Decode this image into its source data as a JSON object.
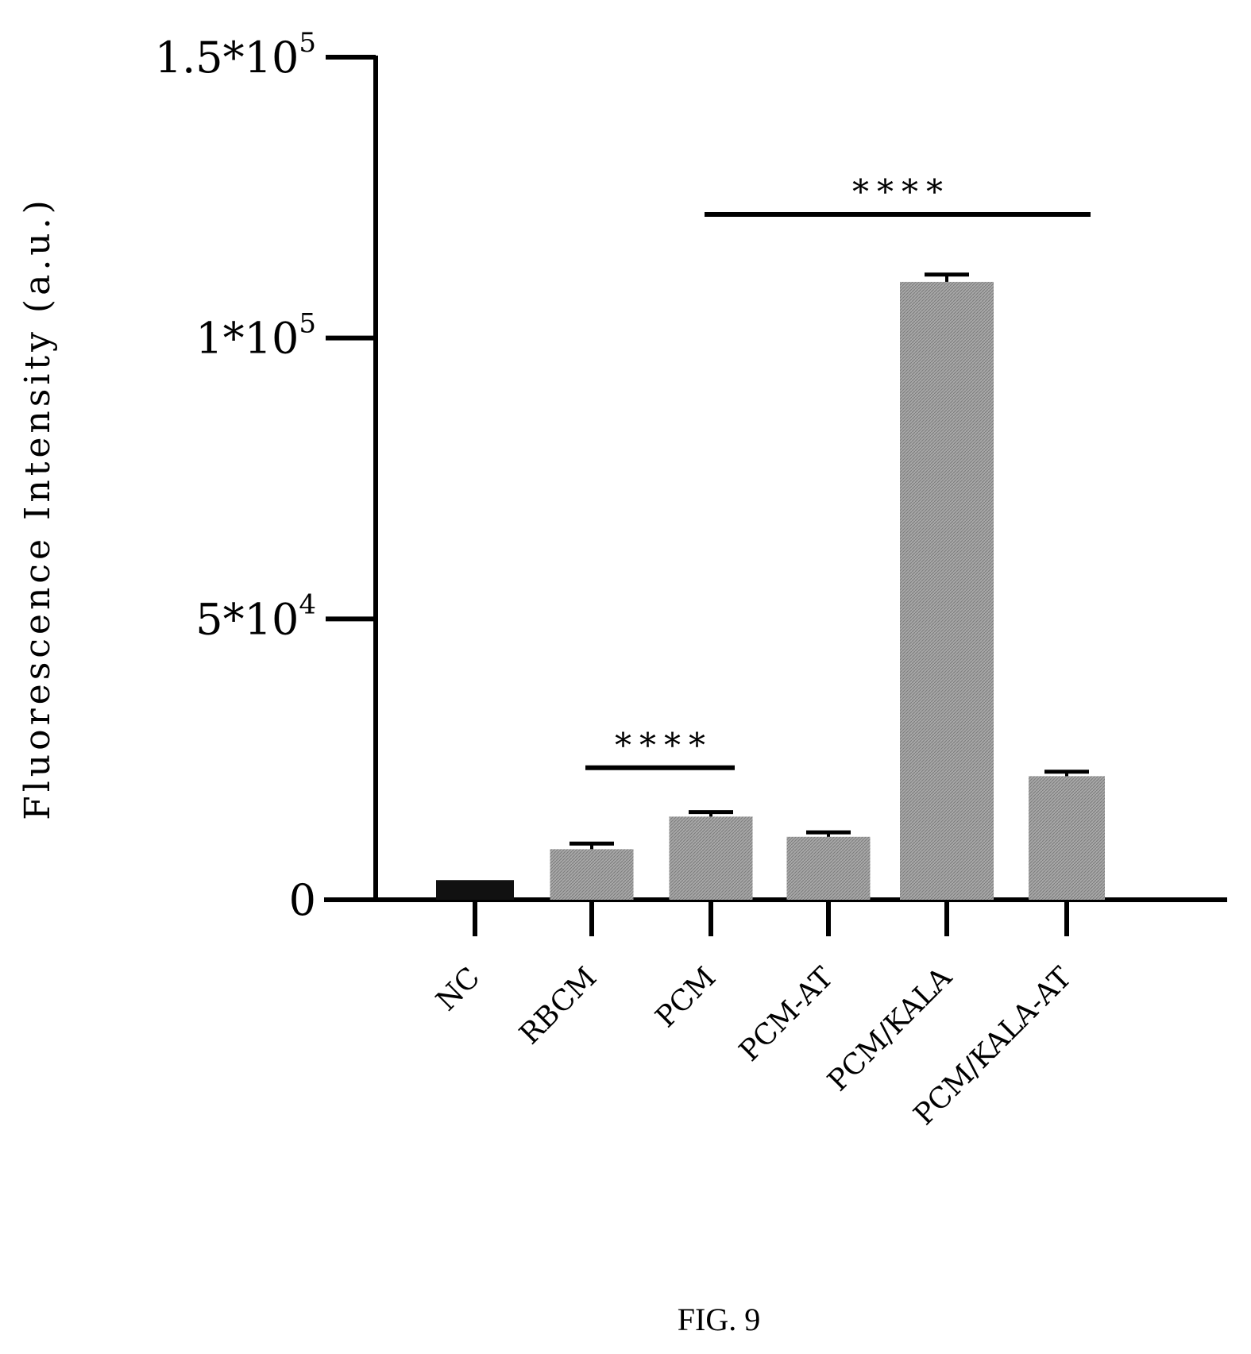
{
  "chart_data": {
    "type": "bar",
    "title": "",
    "xlabel": "",
    "ylabel": "Fluorescence Intensity (a.u.)",
    "ylim": [
      0,
      150000
    ],
    "yticks": [
      {
        "value": 0,
        "base": "0",
        "exp": ""
      },
      {
        "value": 50000,
        "base": "5*10",
        "exp": "4"
      },
      {
        "value": 100000,
        "base": "1*10",
        "exp": "5"
      },
      {
        "value": 150000,
        "base": "1.5*10",
        "exp": "5"
      }
    ],
    "categories": [
      "NC",
      "RBCM",
      "PCM",
      "PCM-AT",
      "PCM/KALA",
      "PCM/KALA-AT"
    ],
    "values": [
      3500,
      9000,
      14800,
      11200,
      110000,
      22000
    ],
    "errors": [
      0,
      1000,
      800,
      800,
      1300,
      800
    ],
    "bar_colors": [
      "#111111",
      "#9a9a9a",
      "#9a9a9a",
      "#9a9a9a",
      "#9a9a9a",
      "#9a9a9a"
    ],
    "significance": [
      {
        "label": "****",
        "from": "RBCM",
        "to": "PCM",
        "y": 23500
      },
      {
        "label": "****",
        "from": "PCM",
        "to": "PCM/KALA-AT",
        "y": 122000
      }
    ],
    "grid": false,
    "legend": "none"
  },
  "caption": "FIG. 9"
}
